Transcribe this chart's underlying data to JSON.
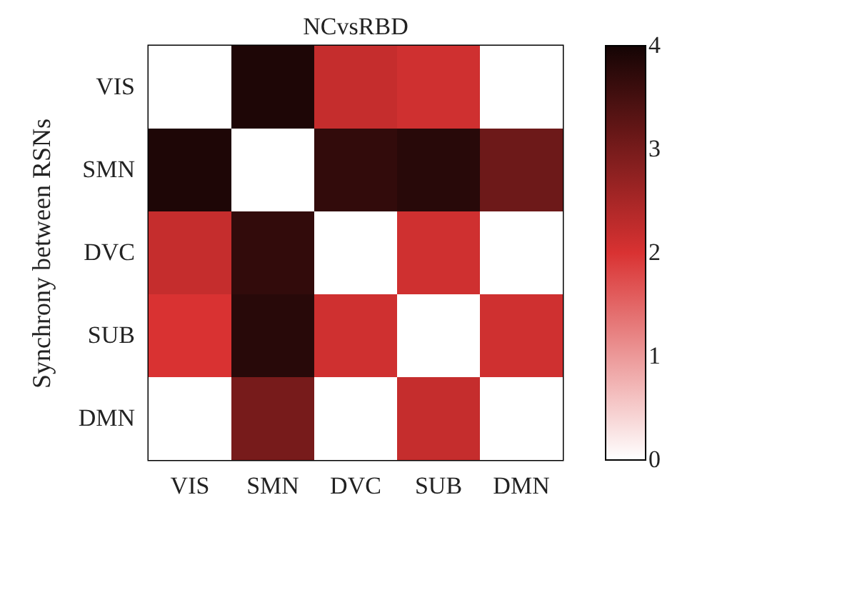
{
  "chart_data": {
    "type": "heatmap",
    "title": "NCvsRBD",
    "ylabel": "Synchrony between RSNs",
    "categories": [
      "VIS",
      "SMN",
      "DVC",
      "SUB",
      "DMN"
    ],
    "y_categories": [
      "VIS",
      "SMN",
      "DVC",
      "SUB",
      "DMN"
    ],
    "cells": [
      [
        0,
        3.9,
        2.2,
        2.1,
        0
      ],
      [
        3.9,
        0,
        3.7,
        3.8,
        3.1
      ],
      [
        2.2,
        3.7,
        0,
        2.1,
        0
      ],
      [
        2.0,
        3.8,
        2.1,
        0,
        2.1
      ],
      [
        0,
        3.0,
        0,
        2.2,
        0
      ]
    ],
    "clim": [
      0,
      4
    ],
    "cticks": [
      0,
      1,
      2,
      3,
      4
    ]
  }
}
